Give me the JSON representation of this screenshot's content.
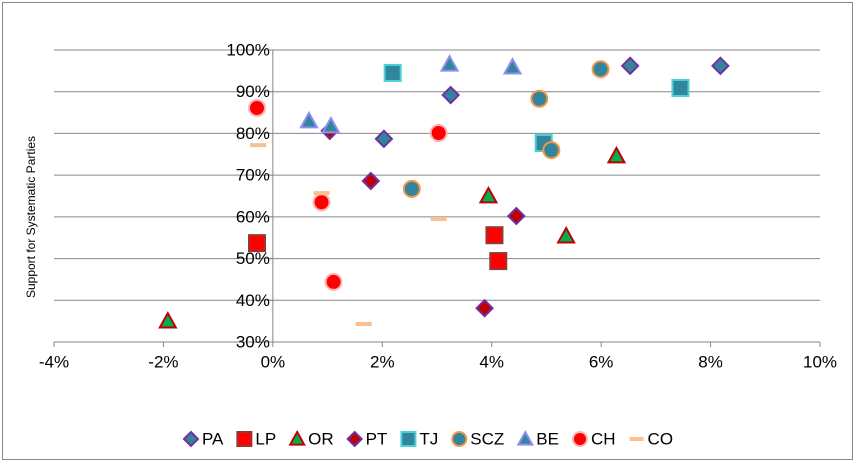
{
  "chart_data": {
    "type": "scatter",
    "y_label": "Support for Systematic Parties",
    "xlim": [
      -4,
      10
    ],
    "xticks": [
      {
        "value": -4,
        "label": "-4%"
      },
      {
        "value": -2,
        "label": "-2%"
      },
      {
        "value": 0,
        "label": "0%"
      },
      {
        "value": 2,
        "label": "2%"
      },
      {
        "value": 4,
        "label": "4%"
      },
      {
        "value": 6,
        "label": "6%"
      },
      {
        "value": 8,
        "label": "8%"
      },
      {
        "value": 10,
        "label": "10%"
      }
    ],
    "ylim": [
      30,
      100
    ],
    "yticks": [
      {
        "value": 30,
        "label": "30%"
      },
      {
        "value": 40,
        "label": "40%"
      },
      {
        "value": 50,
        "label": "50%"
      },
      {
        "value": 60,
        "label": "60%"
      },
      {
        "value": 70,
        "label": "70%"
      },
      {
        "value": 80,
        "label": "80%"
      },
      {
        "value": 90,
        "label": "90%"
      },
      {
        "value": 100,
        "label": "100%"
      }
    ],
    "grid": true,
    "legend": "bottom",
    "series": [
      {
        "name": "PA",
        "marker": "diamond",
        "color": "#31849b",
        "edge": "#7030a0",
        "x": [
          8.18,
          6.53,
          3.25,
          2.03
        ],
        "values": [
          96.2,
          96.2,
          89.2,
          78.7
        ]
      },
      {
        "name": "LP",
        "marker": "square",
        "color": "#ff0000",
        "edge": "#953735",
        "x": [
          -0.29,
          4.05,
          4.12
        ],
        "values": [
          53.7,
          55.6,
          49.4
        ]
      },
      {
        "name": "OR",
        "marker": "triangle",
        "color": "#00b050",
        "edge": "#c00000",
        "x": [
          -1.92,
          3.94,
          5.36,
          6.28
        ],
        "values": [
          35,
          65,
          55.4,
          74.6
        ]
      },
      {
        "name": "PT",
        "marker": "diamond",
        "color": "#c00000",
        "edge": "#7030a0",
        "x": [
          1.04,
          1.79,
          4.45,
          3.87
        ],
        "values": [
          80.6,
          68.6,
          60.2,
          38.1
        ]
      },
      {
        "name": "TJ",
        "marker": "square",
        "color": "#31859c",
        "edge": "#4bd0d6",
        "x": [
          2.19,
          7.45,
          4.95
        ],
        "values": [
          94.5,
          90.9,
          77.7
        ]
      },
      {
        "name": "SCZ",
        "marker": "circle",
        "color": "#31859c",
        "edge": "#f79646",
        "x": [
          4.87,
          5.09,
          5.99,
          2.54
        ],
        "values": [
          88.3,
          76.0,
          95.4,
          66.7
        ]
      },
      {
        "name": "BE",
        "marker": "triangle",
        "color": "#31859c",
        "edge": "#8e8ef0",
        "x": [
          3.23,
          4.38,
          0.66,
          1.06
        ],
        "values": [
          96.6,
          95.9,
          83,
          81.8
        ]
      },
      {
        "name": "CH",
        "marker": "circle",
        "color": "#ff0000",
        "edge": "#ffb3b3",
        "x": [
          -0.29,
          3.03,
          0.89,
          1.11
        ],
        "values": [
          86.1,
          80.1,
          63.5,
          44.4
        ]
      },
      {
        "name": "CO",
        "marker": "dash",
        "color": "#fac090",
        "edge": "#fac090",
        "x": [
          -0.27,
          0.89,
          3.03,
          1.66
        ],
        "values": [
          77.2,
          65.7,
          59.5,
          34.3
        ]
      }
    ]
  }
}
